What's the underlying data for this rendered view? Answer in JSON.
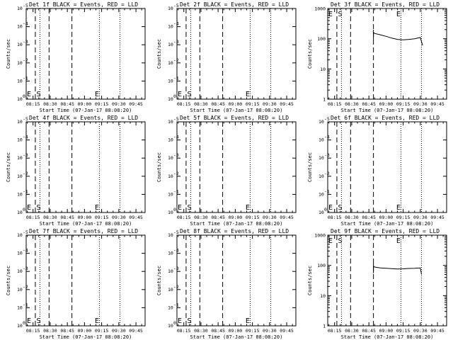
{
  "x_tick_labels": [
    "08:15",
    "08:30",
    "08:45",
    "09:00",
    "09:15",
    "09:30",
    "09:45"
  ],
  "ylabel": "Counts/sec",
  "xlabel": "Start Time (07-Jan-17 08:08:20)",
  "marker_s": "S",
  "marker_e": "E",
  "log_ticks_small": [
    {
      "base": "10",
      "exp": "0"
    },
    {
      "base": "10",
      "exp": "-1"
    },
    {
      "base": "10",
      "exp": "-2"
    },
    {
      "base": "10",
      "exp": "-3"
    },
    {
      "base": "10",
      "exp": "-4"
    },
    {
      "base": "10",
      "exp": "-5"
    }
  ],
  "log_ticks_large": [
    "1",
    "10",
    "100",
    "1000"
  ],
  "chart_data": [
    {
      "type": "line",
      "title": "Det 1f BLACK = Events, RED = LLD",
      "yscale": "log",
      "ylim": [
        1e-05,
        1
      ],
      "xlabel": "Start Time (07-Jan-17 08:08:20)",
      "ylabel": "Counts/sec",
      "x_ticks": [
        "08:15",
        "08:30",
        "08:45",
        "09:00",
        "09:15",
        "09:30",
        "09:45"
      ],
      "series": []
    },
    {
      "type": "line",
      "title": "Det 2f BLACK = Events, RED = LLD",
      "yscale": "log",
      "ylim": [
        1e-05,
        1
      ],
      "xlabel": "Start Time (07-Jan-17 08:08:20)",
      "ylabel": "Counts/sec",
      "x_ticks": [
        "08:15",
        "08:30",
        "08:45",
        "09:00",
        "09:15",
        "09:30",
        "09:45"
      ],
      "series": []
    },
    {
      "type": "line",
      "title": "Det 3f BLACK = Events, RED = LLD",
      "yscale": "log",
      "ylim": [
        1,
        1000
      ],
      "xlabel": "Start Time (07-Jan-17 08:08:20)",
      "ylabel": "Counts/sec",
      "x_ticks": [
        "08:15",
        "08:30",
        "08:45",
        "09:00",
        "09:15",
        "09:30",
        "09:45"
      ],
      "series": [
        {
          "x": [
            "08:49",
            "08:50",
            "08:55",
            "09:00",
            "09:05",
            "09:10",
            "09:15",
            "09:20",
            "09:25",
            "09:30",
            "09:32"
          ],
          "y": [
            160,
            150,
            135,
            120,
            105,
            95,
            92,
            95,
            100,
            110,
            60
          ]
        }
      ]
    },
    {
      "type": "line",
      "title": "Det 4f BLACK = Events, RED = LLD",
      "yscale": "log",
      "ylim": [
        1e-05,
        1
      ],
      "xlabel": "Start Time (07-Jan-17 08:08:20)",
      "ylabel": "Counts/sec",
      "x_ticks": [
        "08:15",
        "08:30",
        "08:45",
        "09:00",
        "09:15",
        "09:30",
        "09:45"
      ],
      "series": []
    },
    {
      "type": "line",
      "title": "Det 5f BLACK = Events, RED = LLD",
      "yscale": "log",
      "ylim": [
        1e-05,
        1
      ],
      "xlabel": "Start Time (07-Jan-17 08:08:20)",
      "ylabel": "Counts/sec",
      "x_ticks": [
        "08:15",
        "08:30",
        "08:45",
        "09:00",
        "09:15",
        "09:30",
        "09:45"
      ],
      "series": []
    },
    {
      "type": "line",
      "title": "Det 6f BLACK = Events, RED = LLD",
      "yscale": "log",
      "ylim": [
        1e-05,
        1
      ],
      "xlabel": "Start Time (07-Jan-17 08:08:20)",
      "ylabel": "Counts/sec",
      "x_ticks": [
        "08:15",
        "08:30",
        "08:45",
        "09:00",
        "09:15",
        "09:30",
        "09:45"
      ],
      "series": []
    },
    {
      "type": "line",
      "title": "Det 7f BLACK = Events, RED = LLD",
      "yscale": "log",
      "ylim": [
        1e-05,
        1
      ],
      "xlabel": "Start Time (07-Jan-17 08:08:20)",
      "ylabel": "Counts/sec",
      "x_ticks": [
        "08:15",
        "08:30",
        "08:45",
        "09:00",
        "09:15",
        "09:30",
        "09:45"
      ],
      "series": []
    },
    {
      "type": "line",
      "title": "Det 8f BLACK = Events, RED = LLD",
      "yscale": "log",
      "ylim": [
        1e-05,
        1
      ],
      "xlabel": "Start Time (07-Jan-17 08:08:20)",
      "ylabel": "Counts/sec",
      "x_ticks": [
        "08:15",
        "08:30",
        "08:45",
        "09:00",
        "09:15",
        "09:30",
        "09:45"
      ],
      "series": []
    },
    {
      "type": "line",
      "title": "Det 9f BLACK = Events, RED = LLD",
      "yscale": "log",
      "ylim": [
        1,
        1000
      ],
      "xlabel": "Start Time (07-Jan-17 08:08:20)",
      "ylabel": "Counts/sec",
      "x_ticks": [
        "08:15",
        "08:30",
        "08:45",
        "09:00",
        "09:15",
        "09:30",
        "09:45"
      ],
      "series": [
        {
          "x": [
            "08:49",
            "08:50",
            "08:55",
            "09:00",
            "09:05",
            "09:10",
            "09:15",
            "09:20",
            "09:25",
            "09:30",
            "09:31"
          ],
          "y": [
            95,
            88,
            82,
            80,
            78,
            76,
            77,
            79,
            80,
            82,
            50
          ]
        }
      ]
    }
  ]
}
